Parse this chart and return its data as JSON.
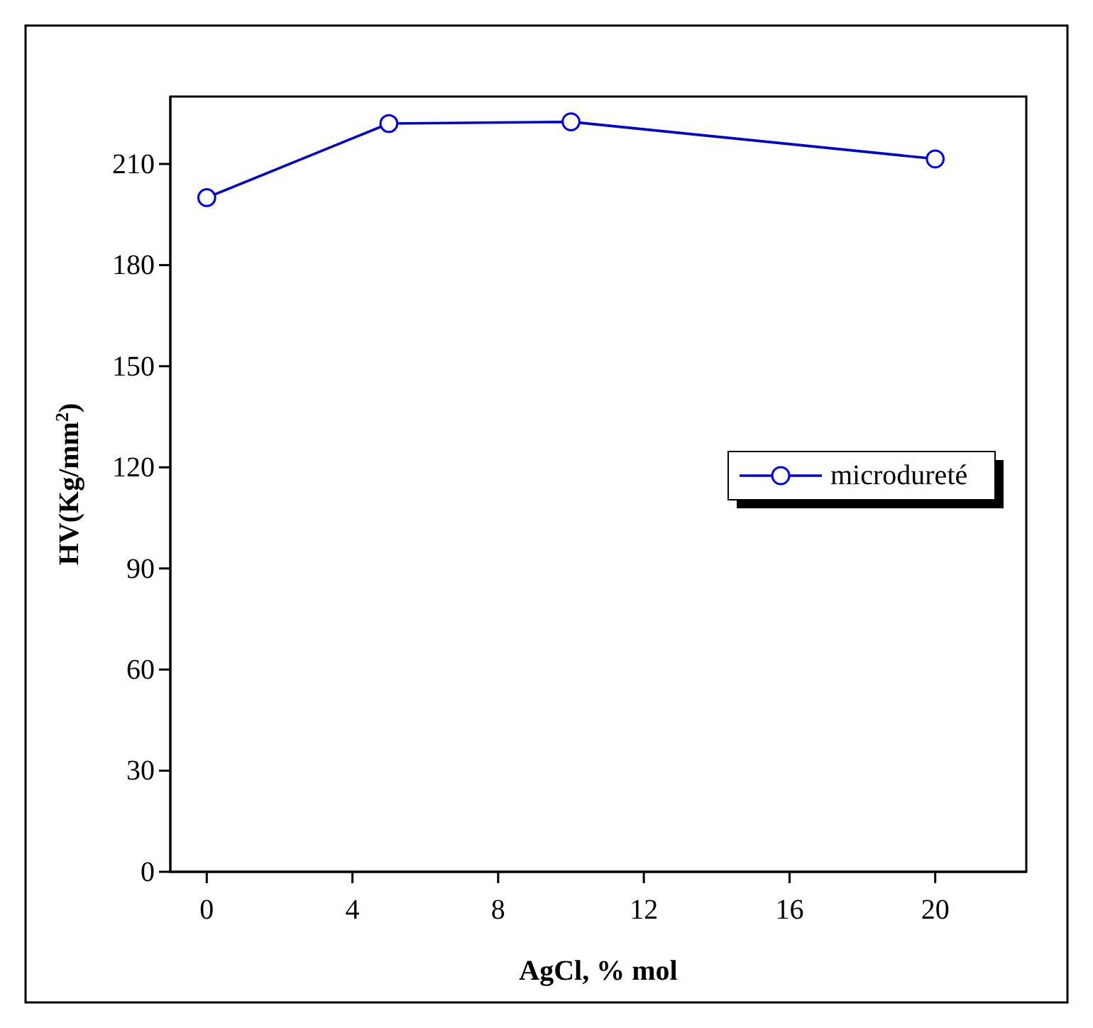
{
  "chart_data": {
    "type": "line",
    "xlabel": "AgCl, % mol",
    "ylabel": "HV(Kg/mm$^{2}$)",
    "x": [
      0,
      5,
      10,
      20
    ],
    "series": [
      {
        "name": "microdureté",
        "color": "#0000cc",
        "values": [
          200,
          222,
          222.5,
          211.5
        ]
      }
    ],
    "xlim": [
      -1,
      22.5
    ],
    "xticks": [
      0,
      4,
      8,
      12,
      16,
      20
    ],
    "ylim": [
      0,
      230
    ],
    "yticks": [
      0,
      30,
      60,
      90,
      120,
      150,
      180,
      210
    ],
    "marker": "circle",
    "legend": "right",
    "grid": false
  }
}
